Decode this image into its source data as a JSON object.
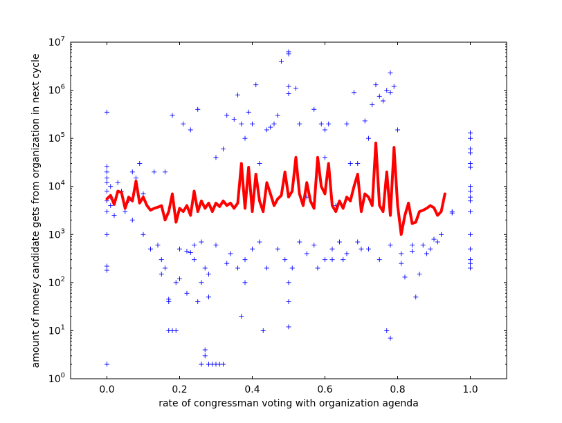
{
  "chart_data": {
    "type": "scatter",
    "title": "",
    "xlabel": "rate of congressman voting with organization agenda",
    "ylabel": "amount of money candidate gets from organization in next cycle",
    "xlim": [
      -0.1,
      1.1
    ],
    "ylim": [
      1,
      10000000
    ],
    "yscale": "log",
    "grid": false,
    "x_ticks": [
      0.0,
      0.2,
      0.4,
      0.6,
      0.8,
      1.0
    ],
    "x_tick_labels": [
      "0.0",
      "0.2",
      "0.4",
      "0.6",
      "0.8",
      "1.0"
    ],
    "y_ticks": [
      1,
      10,
      100,
      1000,
      10000,
      100000,
      1000000,
      10000000
    ],
    "y_tick_labels": [
      {
        "base": "10",
        "exp": "0"
      },
      {
        "base": "10",
        "exp": "1"
      },
      {
        "base": "10",
        "exp": "2"
      },
      {
        "base": "10",
        "exp": "3"
      },
      {
        "base": "10",
        "exp": "4"
      },
      {
        "base": "10",
        "exp": "5"
      },
      {
        "base": "10",
        "exp": "6"
      },
      {
        "base": "10",
        "exp": "7"
      }
    ],
    "colors": {
      "scatter": "#0000ff",
      "line": "#ff0000"
    },
    "series": [
      {
        "kind": "scatter",
        "marker": "plus",
        "points": [
          [
            0.0,
            2
          ],
          [
            0.0,
            180
          ],
          [
            0.0,
            220
          ],
          [
            0.0,
            350000
          ],
          [
            0.0,
            20000
          ],
          [
            0.0,
            26000
          ],
          [
            0.0,
            1000
          ],
          [
            0.0,
            3000
          ],
          [
            0.0,
            5000
          ],
          [
            0.0,
            8000
          ],
          [
            0.0,
            12000
          ],
          [
            0.0,
            15000
          ],
          [
            0.01,
            4000
          ],
          [
            0.01,
            10000
          ],
          [
            0.01,
            6000
          ],
          [
            0.02,
            2500
          ],
          [
            0.03,
            12000
          ],
          [
            0.04,
            8000
          ],
          [
            0.05,
            3000
          ],
          [
            0.06,
            5000
          ],
          [
            0.07,
            2000
          ],
          [
            0.07,
            20000
          ],
          [
            0.08,
            15000
          ],
          [
            0.09,
            30000
          ],
          [
            0.1,
            7000
          ],
          [
            0.1,
            1000
          ],
          [
            0.12,
            500
          ],
          [
            0.13,
            20000
          ],
          [
            0.14,
            600
          ],
          [
            0.15,
            150
          ],
          [
            0.16,
            200
          ],
          [
            0.16,
            20000
          ],
          [
            0.17,
            40
          ],
          [
            0.17,
            45
          ],
          [
            0.17,
            10
          ],
          [
            0.18,
            10
          ],
          [
            0.19,
            10
          ],
          [
            0.18,
            300000
          ],
          [
            0.19,
            100
          ],
          [
            0.2,
            120
          ],
          [
            0.21,
            200000
          ],
          [
            0.22,
            60
          ],
          [
            0.23,
            150000
          ],
          [
            0.24,
            600
          ],
          [
            0.25,
            400000
          ],
          [
            0.25,
            40
          ],
          [
            0.26,
            100
          ],
          [
            0.26,
            2
          ],
          [
            0.27,
            3
          ],
          [
            0.27,
            4
          ],
          [
            0.28,
            2
          ],
          [
            0.29,
            2
          ],
          [
            0.3,
            2
          ],
          [
            0.31,
            2
          ],
          [
            0.32,
            2
          ],
          [
            0.28,
            50
          ],
          [
            0.3,
            40000
          ],
          [
            0.32,
            60000
          ],
          [
            0.33,
            300000
          ],
          [
            0.34,
            400
          ],
          [
            0.35,
            250000
          ],
          [
            0.36,
            800000
          ],
          [
            0.37,
            20
          ],
          [
            0.37,
            200000
          ],
          [
            0.38,
            100
          ],
          [
            0.38,
            100000
          ],
          [
            0.39,
            350000
          ],
          [
            0.4,
            200000
          ],
          [
            0.41,
            1300000
          ],
          [
            0.42,
            30000
          ],
          [
            0.43,
            10
          ],
          [
            0.44,
            150000
          ],
          [
            0.45,
            170000
          ],
          [
            0.46,
            200000
          ],
          [
            0.47,
            300000
          ],
          [
            0.48,
            4000000
          ],
          [
            0.5,
            5700000
          ],
          [
            0.5,
            6300000
          ],
          [
            0.5,
            12
          ],
          [
            0.5,
            1200000
          ],
          [
            0.5,
            850000
          ],
          [
            0.5,
            40
          ],
          [
            0.5,
            100
          ],
          [
            0.51,
            200
          ],
          [
            0.52,
            1100000
          ],
          [
            0.53,
            200000
          ],
          [
            0.55,
            6000
          ],
          [
            0.57,
            400000
          ],
          [
            0.58,
            200
          ],
          [
            0.59,
            200000
          ],
          [
            0.6,
            150000
          ],
          [
            0.6,
            40000
          ],
          [
            0.61,
            200000
          ],
          [
            0.62,
            300
          ],
          [
            0.63,
            4000
          ],
          [
            0.64,
            700
          ],
          [
            0.65,
            300
          ],
          [
            0.66,
            200000
          ],
          [
            0.67,
            30000
          ],
          [
            0.68,
            900000
          ],
          [
            0.69,
            30000
          ],
          [
            0.7,
            500
          ],
          [
            0.71,
            230000
          ],
          [
            0.72,
            100000
          ],
          [
            0.73,
            500000
          ],
          [
            0.74,
            1300000
          ],
          [
            0.75,
            750000
          ],
          [
            0.76,
            600000
          ],
          [
            0.77,
            1000000
          ],
          [
            0.77,
            10
          ],
          [
            0.78,
            7
          ],
          [
            0.78,
            900000
          ],
          [
            0.78,
            2300000
          ],
          [
            0.79,
            1200000
          ],
          [
            0.8,
            150000
          ],
          [
            0.81,
            400
          ],
          [
            0.82,
            130
          ],
          [
            0.84,
            600
          ],
          [
            0.85,
            50
          ],
          [
            0.86,
            150
          ],
          [
            0.88,
            400
          ],
          [
            0.9,
            800
          ],
          [
            0.92,
            1000
          ],
          [
            0.95,
            3000
          ],
          [
            0.95,
            2800
          ],
          [
            1.0,
            130000
          ],
          [
            1.0,
            100000
          ],
          [
            1.0,
            60000
          ],
          [
            1.0,
            50000
          ],
          [
            1.0,
            30000
          ],
          [
            1.0,
            25000
          ],
          [
            1.0,
            10000
          ],
          [
            1.0,
            8000
          ],
          [
            1.0,
            6000
          ],
          [
            1.0,
            5000
          ],
          [
            1.0,
            3000
          ],
          [
            1.0,
            1000
          ],
          [
            1.0,
            500
          ],
          [
            1.0,
            300
          ],
          [
            1.0,
            250
          ],
          [
            1.0,
            200
          ],
          [
            0.15,
            300
          ],
          [
            0.2,
            500
          ],
          [
            0.22,
            450
          ],
          [
            0.23,
            420
          ],
          [
            0.24,
            300
          ],
          [
            0.26,
            700
          ],
          [
            0.27,
            200
          ],
          [
            0.28,
            150
          ],
          [
            0.3,
            600
          ],
          [
            0.33,
            250
          ],
          [
            0.36,
            200
          ],
          [
            0.38,
            300
          ],
          [
            0.4,
            500
          ],
          [
            0.42,
            700
          ],
          [
            0.44,
            200
          ],
          [
            0.47,
            500
          ],
          [
            0.49,
            300
          ],
          [
            0.53,
            700
          ],
          [
            0.55,
            400
          ],
          [
            0.57,
            600
          ],
          [
            0.6,
            300
          ],
          [
            0.62,
            500
          ],
          [
            0.66,
            400
          ],
          [
            0.69,
            700
          ],
          [
            0.72,
            500
          ],
          [
            0.75,
            300
          ],
          [
            0.78,
            600
          ],
          [
            0.81,
            250
          ],
          [
            0.84,
            450
          ],
          [
            0.87,
            600
          ],
          [
            0.89,
            500
          ],
          [
            0.91,
            700
          ]
        ]
      },
      {
        "kind": "line",
        "points": [
          [
            0.0,
            5500
          ],
          [
            0.01,
            6500
          ],
          [
            0.02,
            4200
          ],
          [
            0.03,
            8000
          ],
          [
            0.04,
            7500
          ],
          [
            0.05,
            3500
          ],
          [
            0.06,
            6000
          ],
          [
            0.07,
            5000
          ],
          [
            0.08,
            13000
          ],
          [
            0.09,
            4500
          ],
          [
            0.1,
            6000
          ],
          [
            0.11,
            4000
          ],
          [
            0.12,
            3200
          ],
          [
            0.13,
            3500
          ],
          [
            0.14,
            3700
          ],
          [
            0.15,
            4000
          ],
          [
            0.16,
            2000
          ],
          [
            0.17,
            3000
          ],
          [
            0.18,
            7000
          ],
          [
            0.19,
            1800
          ],
          [
            0.2,
            3500
          ],
          [
            0.21,
            3000
          ],
          [
            0.22,
            4000
          ],
          [
            0.23,
            2500
          ],
          [
            0.24,
            8000
          ],
          [
            0.25,
            3000
          ],
          [
            0.26,
            5000
          ],
          [
            0.27,
            3500
          ],
          [
            0.28,
            4500
          ],
          [
            0.29,
            3000
          ],
          [
            0.3,
            4500
          ],
          [
            0.31,
            3800
          ],
          [
            0.32,
            5000
          ],
          [
            0.33,
            4000
          ],
          [
            0.34,
            4500
          ],
          [
            0.35,
            3500
          ],
          [
            0.36,
            4500
          ],
          [
            0.37,
            30000
          ],
          [
            0.38,
            3500
          ],
          [
            0.39,
            25000
          ],
          [
            0.4,
            3000
          ],
          [
            0.41,
            18000
          ],
          [
            0.42,
            5000
          ],
          [
            0.43,
            3000
          ],
          [
            0.44,
            12000
          ],
          [
            0.45,
            7000
          ],
          [
            0.46,
            4000
          ],
          [
            0.47,
            5500
          ],
          [
            0.48,
            6500
          ],
          [
            0.49,
            20000
          ],
          [
            0.5,
            6000
          ],
          [
            0.51,
            8000
          ],
          [
            0.52,
            40000
          ],
          [
            0.53,
            7000
          ],
          [
            0.54,
            4000
          ],
          [
            0.55,
            12000
          ],
          [
            0.56,
            5000
          ],
          [
            0.57,
            3500
          ],
          [
            0.58,
            40000
          ],
          [
            0.59,
            10000
          ],
          [
            0.6,
            7000
          ],
          [
            0.61,
            30000
          ],
          [
            0.62,
            4000
          ],
          [
            0.63,
            3000
          ],
          [
            0.64,
            5000
          ],
          [
            0.65,
            3500
          ],
          [
            0.66,
            6000
          ],
          [
            0.67,
            5000
          ],
          [
            0.68,
            10000
          ],
          [
            0.69,
            18000
          ],
          [
            0.7,
            3000
          ],
          [
            0.71,
            7000
          ],
          [
            0.72,
            6000
          ],
          [
            0.73,
            4000
          ],
          [
            0.74,
            80000
          ],
          [
            0.75,
            4000
          ],
          [
            0.76,
            3000
          ],
          [
            0.77,
            20000
          ],
          [
            0.78,
            2500
          ],
          [
            0.79,
            65000
          ],
          [
            0.8,
            4000
          ],
          [
            0.81,
            1000
          ],
          [
            0.82,
            2500
          ],
          [
            0.83,
            4500
          ],
          [
            0.84,
            1700
          ],
          [
            0.85,
            1800
          ],
          [
            0.86,
            3000
          ],
          [
            0.87,
            3200
          ],
          [
            0.88,
            3500
          ],
          [
            0.89,
            4000
          ],
          [
            0.9,
            3600
          ],
          [
            0.91,
            2500
          ],
          [
            0.92,
            3000
          ],
          [
            0.93,
            7000
          ]
        ]
      }
    ]
  }
}
